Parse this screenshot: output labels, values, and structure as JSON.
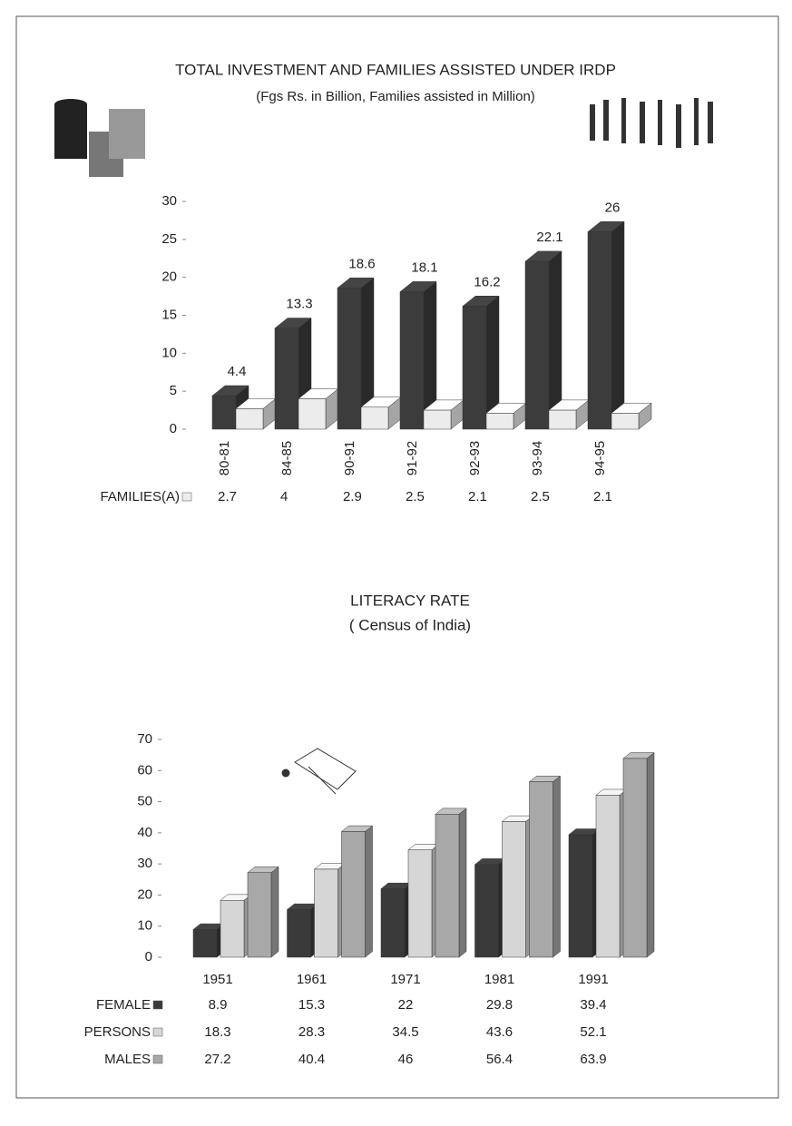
{
  "chart_data": [
    {
      "type": "bar",
      "title": "TOTAL INVESTMENT AND FAMILIES ASSISTED UNDER IRDP",
      "subtitle": "(Fgs Rs. in Billion, Families assisted in Million)",
      "categories": [
        "80-81",
        "84-85",
        "90-91",
        "91-92",
        "92-93",
        "93-94",
        "94-95"
      ],
      "series": [
        {
          "color": "#3c3c3c",
          "values": [
            4.4,
            13.3,
            18.6,
            18.1,
            16.2,
            22.1,
            26
          ]
        },
        {
          "name": "FAMILIES(A)",
          "color": "#ececec",
          "values": [
            2.7,
            4,
            2.9,
            2.5,
            2.1,
            2.5,
            2.1
          ]
        }
      ],
      "ylim": [
        0,
        30
      ],
      "yticks": [
        0,
        5,
        10,
        15,
        20,
        25,
        30
      ]
    },
    {
      "type": "bar",
      "title": "LITERACY RATE",
      "subtitle": "( Census of India)",
      "categories": [
        "1951",
        "1961",
        "1971",
        "1981",
        "1991"
      ],
      "series": [
        {
          "name": "FEMALE",
          "color": "#3a3a3a",
          "values": [
            8.9,
            15.3,
            22,
            29.8,
            39.4
          ]
        },
        {
          "name": "PERSONS",
          "color": "#d6d6d6",
          "values": [
            18.3,
            28.3,
            34.5,
            43.6,
            52.1
          ]
        },
        {
          "name": "MALES",
          "color": "#a8a8a8",
          "values": [
            27.2,
            40.4,
            46,
            56.4,
            63.9
          ]
        }
      ],
      "ylim": [
        0,
        70
      ],
      "yticks": [
        0,
        10,
        20,
        30,
        40,
        50,
        60,
        70
      ]
    }
  ]
}
